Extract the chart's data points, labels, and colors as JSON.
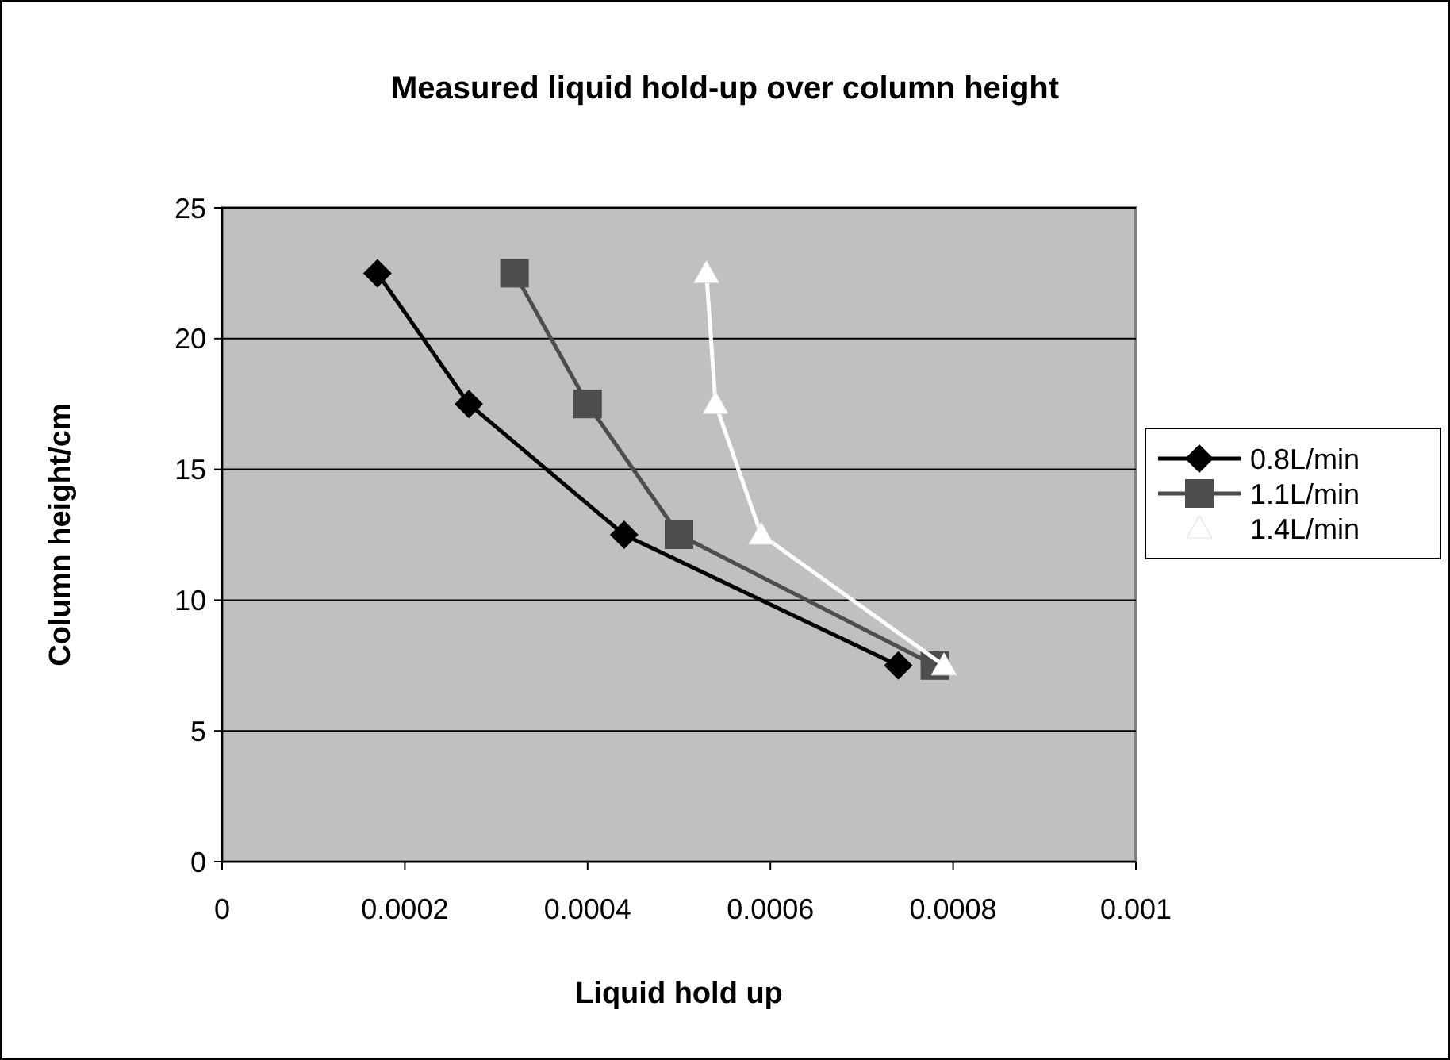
{
  "chart_data": {
    "type": "line",
    "title": "Measured liquid hold-up over column height",
    "xlabel": "Liquid hold up",
    "ylabel": "Column height/cm",
    "xlim": [
      0,
      0.001
    ],
    "xticks": [
      0,
      0.0002,
      0.0004,
      0.0006,
      0.0008,
      0.001
    ],
    "ylim": [
      0,
      25
    ],
    "yticks": [
      0,
      5,
      10,
      15,
      20,
      25
    ],
    "grid": "y",
    "legend": "right",
    "series": [
      {
        "name": "0.8L/min",
        "color": "#000000",
        "marker": "diamond",
        "x": [
          0.00017,
          0.00027,
          0.00044,
          0.00074
        ],
        "values": [
          22.5,
          17.5,
          12.5,
          7.5
        ]
      },
      {
        "name": "1.1L/min",
        "color": "#4d4d4d",
        "marker": "square",
        "x": [
          0.00032,
          0.0004,
          0.0005,
          0.00078
        ],
        "values": [
          22.5,
          17.5,
          12.5,
          7.5
        ]
      },
      {
        "name": "1.4L/min",
        "color": "#ffffff",
        "marker": "triangle",
        "x": [
          0.00053,
          0.00054,
          0.00059,
          0.00079
        ],
        "values": [
          22.5,
          17.5,
          12.5,
          7.5
        ]
      }
    ]
  }
}
